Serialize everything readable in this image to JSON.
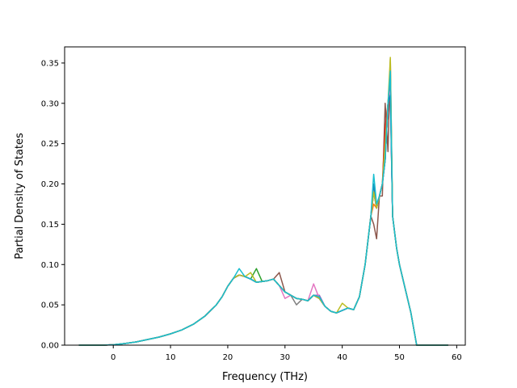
{
  "chart_data": {
    "type": "line",
    "title": "",
    "xlabel": "Frequency (THz)",
    "ylabel": "Partial Density of States",
    "xlim": [
      -8.5,
      61.5
    ],
    "ylim": [
      0,
      0.37
    ],
    "xticks": [
      0,
      10,
      20,
      30,
      40,
      50,
      60
    ],
    "yticks": [
      0.0,
      0.05,
      0.1,
      0.15,
      0.2,
      0.25,
      0.3,
      0.35
    ],
    "ytick_labels": [
      "0.00",
      "0.05",
      "0.10",
      "0.15",
      "0.20",
      "0.25",
      "0.30",
      "0.35"
    ],
    "grid": false,
    "legend": "none",
    "colors": [
      "#1f77b4",
      "#ff7f0e",
      "#2ca02c",
      "#d62728",
      "#9467bd",
      "#8c564b",
      "#e377c2",
      "#7f7f7f",
      "#bcbd22",
      "#17becf"
    ],
    "base_curve": {
      "x": [
        -6,
        -2,
        0,
        2,
        4,
        6,
        8,
        10,
        12,
        14,
        16,
        18,
        19,
        20,
        21,
        22,
        23,
        24,
        25,
        26,
        27,
        28,
        29,
        30,
        31,
        32,
        33,
        34,
        35,
        36,
        37,
        38,
        39,
        40,
        41,
        42,
        43,
        44,
        45,
        45.5,
        46,
        46.5,
        47,
        47.5,
        48,
        48.4,
        48.8,
        49.5,
        50,
        51,
        52,
        53,
        53.2,
        55,
        58.5
      ],
      "y": [
        0,
        0,
        0.0005,
        0.002,
        0.004,
        0.007,
        0.01,
        0.014,
        0.019,
        0.026,
        0.036,
        0.05,
        0.06,
        0.073,
        0.083,
        0.087,
        0.085,
        0.082,
        0.078,
        0.079,
        0.08,
        0.082,
        0.074,
        0.066,
        0.062,
        0.058,
        0.057,
        0.055,
        0.062,
        0.058,
        0.048,
        0.042,
        0.04,
        0.043,
        0.046,
        0.044,
        0.06,
        0.1,
        0.16,
        0.19,
        0.17,
        0.185,
        0.2,
        0.23,
        0.3,
        0.23,
        0.16,
        0.12,
        0.1,
        0.07,
        0.04,
        0.0,
        0.0,
        0.0,
        0.0
      ]
    },
    "series": [
      {
        "color": "#8c564b",
        "overrides": [
          [
            29,
            0.09
          ],
          [
            45.5,
            0.15
          ],
          [
            46,
            0.132
          ],
          [
            47,
            0.185
          ],
          [
            47.5,
            0.3
          ],
          [
            48,
            0.24
          ],
          [
            48.4,
            0.355
          ]
        ]
      },
      {
        "color": "#d62728",
        "overrides": [
          [
            47.5,
            0.27
          ],
          [
            48.4,
            0.32
          ]
        ]
      },
      {
        "color": "#2ca02c",
        "overrides": [
          [
            25,
            0.095
          ],
          [
            48.4,
            0.335
          ]
        ]
      },
      {
        "color": "#ff7f0e",
        "overrides": [
          [
            45.5,
            0.175
          ],
          [
            48.4,
            0.33
          ]
        ]
      },
      {
        "color": "#9467bd",
        "overrides": [
          [
            36,
            0.062
          ],
          [
            48.4,
            0.31
          ]
        ]
      },
      {
        "color": "#7f7f7f",
        "overrides": [
          [
            32,
            0.05
          ],
          [
            48.4,
            0.325
          ]
        ]
      },
      {
        "color": "#e377c2",
        "overrides": [
          [
            35,
            0.076
          ],
          [
            30,
            0.058
          ],
          [
            48.4,
            0.315
          ]
        ]
      },
      {
        "color": "#1f77b4",
        "overrides": [
          [
            45.5,
            0.2
          ],
          [
            48.4,
            0.31
          ]
        ]
      },
      {
        "color": "#bcbd22",
        "overrides": [
          [
            24,
            0.09
          ],
          [
            40,
            0.052
          ],
          [
            47.5,
            0.25
          ],
          [
            48.4,
            0.357
          ]
        ]
      },
      {
        "color": "#17becf",
        "overrides": [
          [
            22,
            0.095
          ],
          [
            36,
            0.06
          ],
          [
            45.5,
            0.212
          ],
          [
            46,
            0.175
          ],
          [
            48.4,
            0.34
          ]
        ]
      }
    ]
  }
}
